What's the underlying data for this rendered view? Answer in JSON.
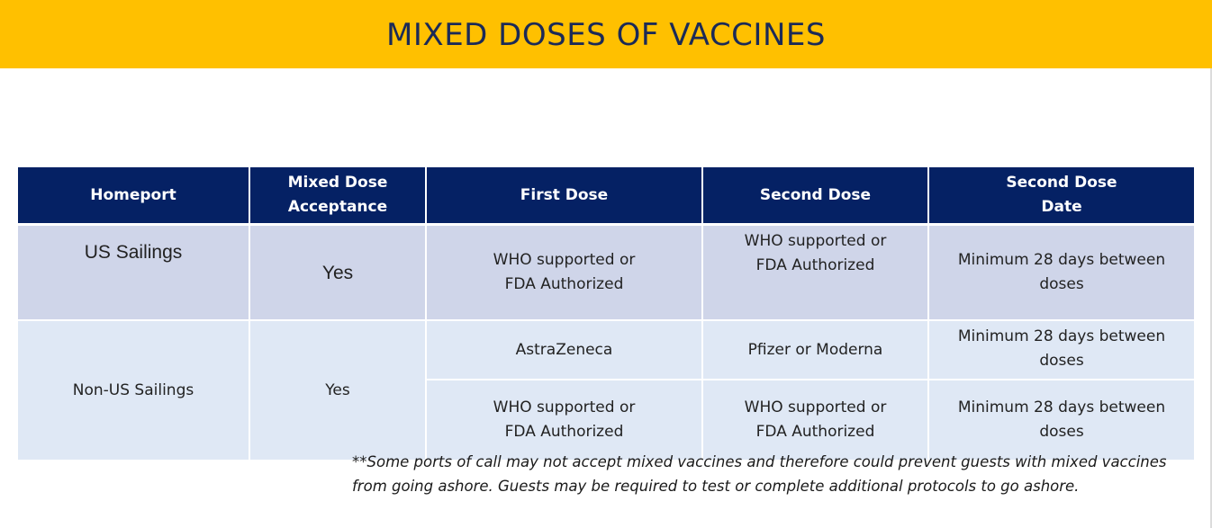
{
  "title": "MIXED DOSES OF VACCINES",
  "colors": {
    "header_band": "#ffc000",
    "title_text": "#1b2a57",
    "table_header": "#052164",
    "row_us": "#cfd5e9",
    "row_nonus": "#dfe8f5"
  },
  "table": {
    "headers": {
      "homeport": "Homeport",
      "mixed_dose_line1": "Mixed Dose",
      "mixed_dose_line2": "Acceptance",
      "first_dose": "First Dose",
      "second_dose": "Second Dose",
      "second_dose_date_line1": "Second Dose",
      "second_dose_date_line2": "Date"
    },
    "us": {
      "homeport": "US Sailings",
      "acceptance": "Yes",
      "first_dose_line1": "WHO supported or",
      "first_dose_line2": "FDA Authorized",
      "second_dose_line1": "WHO supported or",
      "second_dose_line2": "FDA Authorized",
      "date_line1": "Minimum 28 days between",
      "date_line2": "doses"
    },
    "non_us": {
      "homeport": "Non-US Sailings",
      "acceptance": "Yes",
      "rows": [
        {
          "first_dose_line1": "AstraZeneca",
          "first_dose_line2": "",
          "second_dose_line1": "Pfizer or Moderna",
          "second_dose_line2": "",
          "date_line1": "Minimum 28 days between",
          "date_line2": "doses"
        },
        {
          "first_dose_line1": "WHO supported or",
          "first_dose_line2": "FDA Authorized",
          "second_dose_line1": "WHO supported or",
          "second_dose_line2": "FDA Authorized",
          "date_line1": "Minimum 28 days between",
          "date_line2": "doses"
        }
      ]
    }
  },
  "footnote": {
    "line1": "**Some ports of call may not accept mixed vaccines and therefore could prevent guests with mixed vaccines",
    "line2": "from going ashore. Guests may be required to test or complete additional protocols to go ashore."
  }
}
